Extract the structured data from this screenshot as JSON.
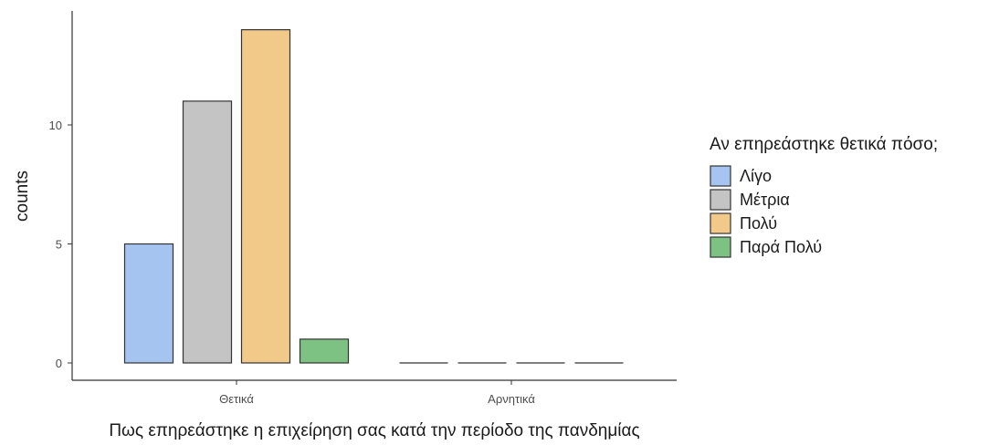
{
  "chart_data": {
    "type": "bar",
    "categories": [
      "Θετικά",
      "Αρνητικά"
    ],
    "series": [
      {
        "name": "Λίγο",
        "values": [
          5,
          0
        ],
        "color": "#a6c4f0"
      },
      {
        "name": "Μέτρια",
        "values": [
          11,
          0
        ],
        "color": "#c4c4c4"
      },
      {
        "name": "Πολύ",
        "values": [
          14,
          0
        ],
        "color": "#f1ca8a"
      },
      {
        "name": "Παρά Πολύ",
        "values": [
          1,
          0
        ],
        "color": "#7dc283"
      }
    ],
    "xlabel": "Πως επηρεάστηκε η επιχείρηση σας κατά την περίοδο της πανδημίας",
    "ylabel": "counts",
    "yticks": [
      0,
      5,
      10
    ],
    "ylim": [
      0,
      14.6
    ],
    "legend": {
      "title": "Αν επηρεάστηκε θετικά πόσο;",
      "position": "right"
    },
    "grid": false
  }
}
